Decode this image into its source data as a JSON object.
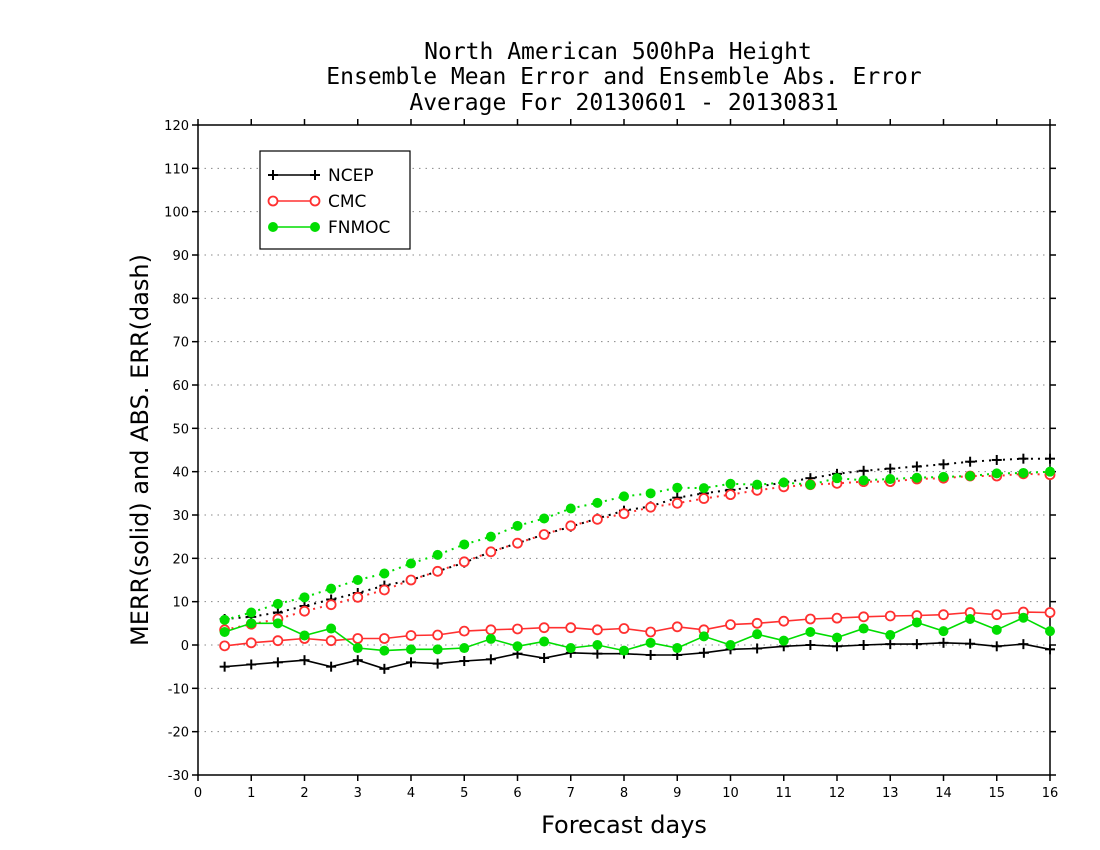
{
  "chart_data": {
    "type": "line",
    "title_lines": [
      "North American 500hPa Height",
      "Ensemble Mean Error and Ensemble Abs. Error",
      "Average For 20130601 - 20130831"
    ],
    "xlabel": "Forecast days",
    "ylabel": "MERR(solid) and ABS. ERR(dash)",
    "xlim": [
      0,
      16
    ],
    "ylim": [
      -30,
      120
    ],
    "x_ticks": [
      0,
      1,
      2,
      3,
      4,
      5,
      6,
      7,
      8,
      9,
      10,
      11,
      12,
      13,
      14,
      15,
      16
    ],
    "y_ticks": [
      -30,
      -20,
      -10,
      0,
      10,
      20,
      30,
      40,
      50,
      60,
      70,
      80,
      90,
      100,
      110,
      120
    ],
    "grid": "horizontal dotted",
    "legend_position": "top-left",
    "x": [
      0.5,
      1,
      1.5,
      2,
      2.5,
      3,
      3.5,
      4,
      4.5,
      5,
      5.5,
      6,
      6.5,
      7,
      7.5,
      8,
      8.5,
      9,
      9.5,
      10,
      10.5,
      11,
      11.5,
      12,
      12.5,
      13,
      13.5,
      14,
      14.5,
      15,
      15.5,
      16
    ],
    "series": [
      {
        "name": "NCEP",
        "color": "#000000",
        "marker": "plus",
        "merr": [
          -5,
          -4.5,
          -4,
          -3.5,
          -5,
          -3.5,
          -5.5,
          -4,
          -4.3,
          -3.7,
          -3.3,
          -2,
          -3,
          -1.8,
          -2,
          -2,
          -2.3,
          -2.3,
          -1.8,
          -1,
          -0.8,
          -0.3,
          0,
          -0.3,
          0,
          0.2,
          0.2,
          0.5,
          0.3,
          -0.3,
          0.2,
          -1
        ],
        "abs_err": [
          6,
          6.5,
          7.5,
          9,
          10.5,
          12,
          13.7,
          15,
          17,
          19,
          21.5,
          23.5,
          25.5,
          27.3,
          29.2,
          31,
          32,
          34,
          35,
          35.8,
          36.5,
          37.5,
          38.5,
          39.5,
          40.2,
          40.7,
          41.2,
          41.7,
          42.3,
          42.7,
          43,
          43
        ]
      },
      {
        "name": "CMC",
        "color": "#ff3030",
        "marker": "open-circle",
        "merr": [
          -0.2,
          0.5,
          1,
          1.5,
          1,
          1.5,
          1.5,
          2.2,
          2.3,
          3.2,
          3.5,
          3.7,
          4,
          4,
          3.5,
          3.8,
          3,
          4.2,
          3.5,
          4.7,
          5,
          5.5,
          6,
          6.2,
          6.5,
          6.7,
          6.8,
          7,
          7.5,
          7,
          7.6,
          7.5
        ],
        "abs_err": [
          3.5,
          4.8,
          6,
          7.8,
          9.3,
          11,
          12.7,
          15,
          17,
          19.2,
          21.5,
          23.5,
          25.5,
          27.5,
          29,
          30.3,
          31.8,
          32.7,
          33.8,
          34.7,
          35.7,
          36.5,
          37,
          37.3,
          37.7,
          37.7,
          38.3,
          38.5,
          39,
          39,
          39.5,
          39.3
        ]
      },
      {
        "name": "FNMOC",
        "color": "#00dd00",
        "marker": "filled-circle",
        "merr": [
          3,
          5,
          5,
          2.2,
          3.8,
          -0.7,
          -1.3,
          -1,
          -1,
          -0.7,
          1.4,
          -0.3,
          0.8,
          -0.7,
          0,
          -1.3,
          0.5,
          -0.7,
          2,
          0,
          2.5,
          1,
          3,
          1.7,
          3.8,
          2.3,
          5.2,
          3.2,
          6,
          3.5,
          6.3,
          3.2
        ],
        "abs_err": [
          5.8,
          7.5,
          9.5,
          11,
          13,
          15,
          16.5,
          18.8,
          20.8,
          23.2,
          25,
          27.5,
          29.2,
          31.5,
          32.8,
          34.3,
          35,
          36.3,
          36.2,
          37.2,
          37,
          37.5,
          37,
          38.5,
          38,
          38.3,
          38.6,
          38.8,
          39,
          39.6,
          39.7,
          40
        ]
      }
    ]
  }
}
